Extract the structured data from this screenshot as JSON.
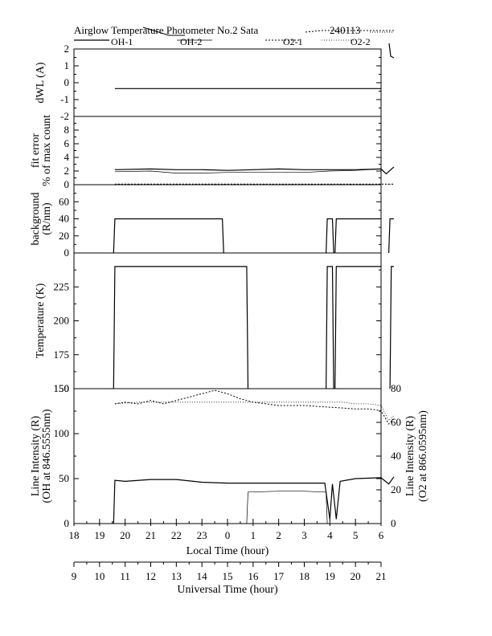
{
  "chart_data": {
    "type": "line",
    "title": "Airglow Temperature Photometer No.2  Sata",
    "date_label": "240113",
    "legend": [
      {
        "name": "OH-1",
        "dash": "solid",
        "width": 1.2
      },
      {
        "name": "OH-2",
        "dash": "solid",
        "width": 0.7
      },
      {
        "name": "O2-1",
        "dash": "2,2",
        "width": 1.0
      },
      {
        "name": "O2-2",
        "dash": "1,2",
        "width": 0.8
      }
    ],
    "x_axis": {
      "label": "Local Time (hour)",
      "range": [
        18,
        30
      ],
      "ticks": [
        18,
        19,
        20,
        21,
        22,
        23,
        24,
        25,
        26,
        27,
        28,
        29,
        30
      ],
      "tick_labels": [
        "18",
        "19",
        "20",
        "21",
        "22",
        "23",
        "0",
        "1",
        "2",
        "3",
        "4",
        "5",
        "6"
      ]
    },
    "x2_axis": {
      "label": "Universal Time (hour)",
      "tick_labels": [
        "9",
        "10",
        "11",
        "12",
        "13",
        "14",
        "15",
        "16",
        "17",
        "18",
        "19",
        "20",
        "21"
      ]
    },
    "panels": [
      {
        "id": "dwl",
        "ylabel": "dWL (A)",
        "ylim": [
          -2,
          2
        ],
        "yticks": [
          -2,
          -1,
          0,
          1,
          2
        ],
        "ytick_labels": [
          "-2",
          "-1",
          "0",
          "1",
          "2"
        ],
        "series": [
          {
            "legend": 0,
            "points": [
              [
                19.6,
                -0.35
              ],
              [
                30.0,
                -0.35
              ]
            ]
          }
        ]
      },
      {
        "id": "fit",
        "ylabel": [
          "fit error",
          "% of max count"
        ],
        "ylim": [
          0,
          10
        ],
        "yticks": [
          0,
          2,
          4,
          6,
          8,
          10
        ],
        "ytick_labels": [
          "0",
          "2",
          "4",
          "6",
          "8",
          ""
        ],
        "series": [
          {
            "legend": 0,
            "points": [
              [
                19.6,
                2.2
              ],
              [
                21.0,
                2.3
              ],
              [
                22.0,
                2.2
              ],
              [
                23.0,
                2.2
              ],
              [
                24.0,
                2.1
              ],
              [
                25.0,
                2.2
              ],
              [
                26.0,
                2.3
              ],
              [
                27.0,
                2.2
              ],
              [
                28.0,
                2.2
              ],
              [
                29.0,
                2.2
              ],
              [
                30.0,
                2.3
              ],
              [
                30.2,
                1.6
              ],
              [
                30.5,
                2.6
              ]
            ]
          },
          {
            "legend": 1,
            "points": [
              [
                19.6,
                1.9
              ],
              [
                21.0,
                2.0
              ],
              [
                22.0,
                1.7
              ],
              [
                23.0,
                1.7
              ],
              [
                24.0,
                1.8
              ],
              [
                25.0,
                1.8
              ],
              [
                26.0,
                1.8
              ],
              [
                27.0,
                1.8
              ],
              [
                28.0,
                2.0
              ],
              [
                29.0,
                2.1
              ],
              [
                30.0,
                2.3
              ]
            ]
          },
          {
            "legend": 2,
            "points": [
              [
                19.6,
                0.1
              ],
              [
                30.5,
                0.1
              ]
            ]
          },
          {
            "legend": 3,
            "points": [
              [
                19.6,
                0.05
              ],
              [
                30.5,
                0.05
              ]
            ]
          }
        ]
      },
      {
        "id": "bg",
        "ylabel": [
          "background",
          "(R/nm)"
        ],
        "ylim": [
          0,
          80
        ],
        "yticks": [
          0,
          20,
          40,
          60,
          80
        ],
        "ytick_labels": [
          "0",
          "20",
          "40",
          "60",
          ""
        ],
        "series": [
          {
            "legend": 0,
            "points": [
              [
                19.55,
                0
              ],
              [
                19.6,
                40
              ],
              [
                23.8,
                40
              ],
              [
                23.85,
                0
              ]
            ]
          },
          {
            "legend": 0,
            "points": [
              [
                27.85,
                0
              ],
              [
                27.9,
                40
              ],
              [
                28.1,
                40
              ],
              [
                28.15,
                0
              ]
            ]
          },
          {
            "legend": 0,
            "points": [
              [
                28.2,
                0
              ],
              [
                28.25,
                40
              ],
              [
                30.0,
                40
              ]
            ]
          },
          {
            "legend": 0,
            "points": [
              [
                30.3,
                0
              ],
              [
                30.35,
                40
              ],
              [
                30.5,
                40
              ]
            ]
          }
        ]
      },
      {
        "id": "temp",
        "ylabel": "Temperature (K)",
        "ylim": [
          150,
          250
        ],
        "yticks": [
          150,
          175,
          200,
          225,
          250
        ],
        "ytick_labels": [
          "150",
          "175",
          "200",
          "225",
          ""
        ],
        "series": [
          {
            "legend": 0,
            "points": [
              [
                19.55,
                150
              ],
              [
                19.6,
                240
              ],
              [
                24.75,
                240
              ],
              [
                24.8,
                150
              ]
            ]
          },
          {
            "legend": 0,
            "points": [
              [
                27.85,
                150
              ],
              [
                27.9,
                240
              ],
              [
                28.1,
                240
              ],
              [
                28.15,
                150
              ]
            ]
          },
          {
            "legend": 0,
            "points": [
              [
                28.2,
                150
              ],
              [
                28.25,
                240
              ],
              [
                30.0,
                240
              ]
            ]
          },
          {
            "legend": 0,
            "points": [
              [
                30.35,
                150
              ],
              [
                30.4,
                240
              ],
              [
                30.5,
                240
              ]
            ]
          }
        ]
      },
      {
        "id": "int",
        "ylabel": [
          "Line Intensity (R)",
          "(OH at 846.5555nm)"
        ],
        "ylim": [
          0,
          150
        ],
        "yticks": [
          0,
          50,
          100,
          150
        ],
        "ytick_labels": [
          "0",
          "50",
          "100",
          "150"
        ],
        "y2label": [
          "Line Intensity (R)",
          "(O2 at 866.0595nm)"
        ],
        "y2lim": [
          0,
          80
        ],
        "y2ticks": [
          0,
          20,
          40,
          60,
          80
        ],
        "y2tick_labels": [
          "0",
          "20",
          "40",
          "60",
          "80"
        ],
        "series": [
          {
            "legend": 0,
            "axis": "left",
            "points": [
              [
                19.55,
                0
              ],
              [
                19.6,
                48
              ],
              [
                20.0,
                47
              ],
              [
                21.0,
                49
              ],
              [
                22.0,
                49
              ],
              [
                23.0,
                46
              ],
              [
                24.0,
                45
              ],
              [
                25.0,
                45
              ],
              [
                26.0,
                45
              ],
              [
                27.0,
                45
              ],
              [
                27.8,
                45
              ],
              [
                28.0,
                5
              ],
              [
                28.1,
                44
              ],
              [
                28.25,
                5
              ],
              [
                28.4,
                47
              ],
              [
                29.0,
                50
              ],
              [
                30.0,
                51
              ],
              [
                30.3,
                44
              ],
              [
                30.5,
                52
              ]
            ]
          },
          {
            "legend": 1,
            "axis": "left",
            "points": [
              [
                24.75,
                0
              ],
              [
                24.8,
                35
              ],
              [
                26.0,
                36
              ],
              [
                27.0,
                36
              ],
              [
                27.85,
                35
              ],
              [
                27.9,
                0
              ]
            ]
          },
          {
            "legend": 1,
            "axis": "left",
            "points": [
              [
                19.55,
                150
              ],
              [
                19.6,
                150
              ],
              [
                23.8,
                150
              ],
              [
                27.8,
                150
              ],
              [
                28.0,
                150
              ],
              [
                30.0,
                150
              ]
            ]
          },
          {
            "legend": 2,
            "axis": "right",
            "points": [
              [
                19.6,
                71
              ],
              [
                20.0,
                72
              ],
              [
                20.5,
                71
              ],
              [
                21.0,
                73
              ],
              [
                21.5,
                71
              ],
              [
                22.0,
                73
              ],
              [
                22.5,
                75
              ],
              [
                23.0,
                77
              ],
              [
                23.5,
                79
              ],
              [
                24.0,
                77
              ],
              [
                24.5,
                74
              ],
              [
                25.0,
                72
              ],
              [
                25.5,
                71
              ],
              [
                26.0,
                70
              ],
              [
                27.0,
                70
              ],
              [
                28.0,
                69
              ],
              [
                29.0,
                68
              ],
              [
                29.5,
                68
              ],
              [
                30.0,
                67
              ],
              [
                30.3,
                59
              ],
              [
                30.5,
                62
              ]
            ]
          },
          {
            "legend": 3,
            "axis": "right",
            "points": [
              [
                19.6,
                71
              ],
              [
                20.5,
                72
              ],
              [
                21.5,
                72
              ],
              [
                22.5,
                72
              ],
              [
                23.5,
                72
              ],
              [
                24.5,
                72
              ],
              [
                25.5,
                72
              ],
              [
                26.5,
                72
              ],
              [
                27.5,
                72
              ],
              [
                28.5,
                72
              ],
              [
                29.0,
                71
              ],
              [
                29.5,
                71
              ],
              [
                30.0,
                70
              ],
              [
                30.3,
                61
              ],
              [
                30.5,
                64
              ]
            ]
          }
        ]
      }
    ]
  }
}
